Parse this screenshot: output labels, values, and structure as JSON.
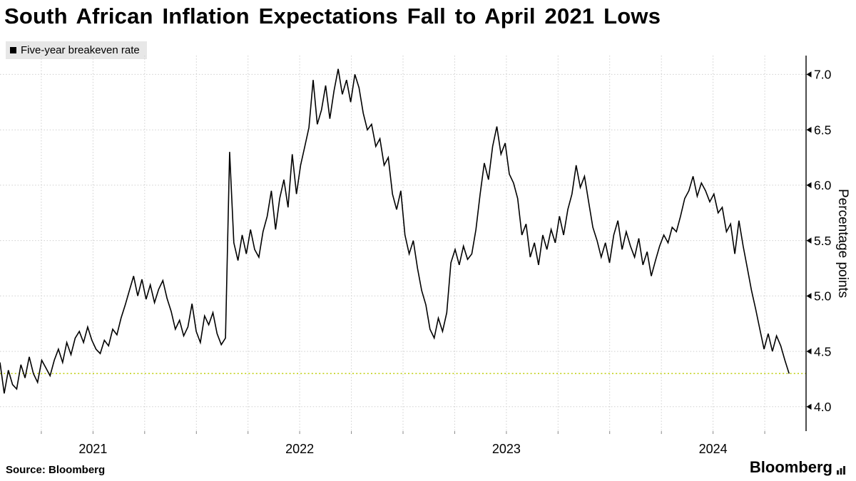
{
  "header": {
    "title": "South African Inflation Expectations Fall to April 2021 Lows"
  },
  "legend": {
    "label": "Five-year breakeven rate",
    "marker_color": "#000000",
    "background": "#e7e7e7"
  },
  "footer": {
    "source": "Source: Bloomberg",
    "logo_text": "Bloomberg",
    "logo_icon": "bar-chart-icon"
  },
  "chart_data": {
    "type": "line",
    "title": "South African Inflation Expectations Fall to April 2021 Lows",
    "y_axis_label": "Percentage points",
    "x_ticks": [
      {
        "label": "2021",
        "x": 2021.5
      },
      {
        "label": "2022",
        "x": 2022.5
      },
      {
        "label": "2023",
        "x": 2023.5
      },
      {
        "label": "2024",
        "x": 2024.5
      }
    ],
    "y_ticks": [
      4.0,
      4.5,
      5.0,
      5.5,
      6.0,
      6.5,
      7.0
    ],
    "x_range": [
      2021.05,
      2024.95
    ],
    "y_range": [
      3.78,
      7.17
    ],
    "grid": {
      "show": true,
      "color": "#cfcfcf",
      "style": "dotted",
      "x_interval_years": 0.25
    },
    "reference_line": {
      "value": 4.3,
      "color": "#c3d21f",
      "style": "dotted"
    },
    "series": [
      {
        "name": "Five-year breakeven rate",
        "color": "#000000",
        "unit": "percentage points",
        "x_start": 2021.05,
        "x_step_years": 0.0202,
        "values": [
          4.4,
          4.12,
          4.33,
          4.2,
          4.16,
          4.38,
          4.26,
          4.45,
          4.3,
          4.22,
          4.42,
          4.35,
          4.28,
          4.42,
          4.52,
          4.4,
          4.58,
          4.47,
          4.62,
          4.68,
          4.58,
          4.72,
          4.6,
          4.52,
          4.48,
          4.6,
          4.55,
          4.7,
          4.65,
          4.8,
          4.92,
          5.05,
          5.18,
          5.0,
          5.15,
          4.97,
          5.1,
          4.94,
          5.06,
          5.14,
          4.98,
          4.86,
          4.7,
          4.78,
          4.64,
          4.72,
          4.93,
          4.68,
          4.58,
          4.82,
          4.74,
          4.85,
          4.66,
          4.56,
          4.62,
          6.3,
          5.48,
          5.32,
          5.55,
          5.38,
          5.6,
          5.42,
          5.35,
          5.58,
          5.72,
          5.95,
          5.6,
          5.88,
          6.05,
          5.8,
          6.28,
          5.92,
          6.18,
          6.35,
          6.52,
          6.95,
          6.55,
          6.68,
          6.9,
          6.6,
          6.85,
          7.05,
          6.82,
          6.95,
          6.75,
          7.0,
          6.88,
          6.65,
          6.5,
          6.55,
          6.35,
          6.42,
          6.18,
          6.25,
          5.92,
          5.78,
          5.95,
          5.55,
          5.38,
          5.5,
          5.25,
          5.05,
          4.92,
          4.7,
          4.62,
          4.8,
          4.68,
          4.85,
          5.3,
          5.42,
          5.28,
          5.45,
          5.33,
          5.38,
          5.6,
          5.92,
          6.2,
          6.05,
          6.35,
          6.53,
          6.28,
          6.38,
          6.1,
          6.02,
          5.88,
          5.55,
          5.65,
          5.35,
          5.48,
          5.28,
          5.55,
          5.42,
          5.6,
          5.48,
          5.72,
          5.55,
          5.78,
          5.92,
          6.18,
          5.98,
          6.08,
          5.85,
          5.62,
          5.5,
          5.35,
          5.48,
          5.3,
          5.55,
          5.68,
          5.42,
          5.58,
          5.45,
          5.35,
          5.52,
          5.28,
          5.4,
          5.18,
          5.32,
          5.45,
          5.55,
          5.48,
          5.62,
          5.58,
          5.72,
          5.88,
          5.95,
          6.08,
          5.9,
          6.02,
          5.95,
          5.85,
          5.92,
          5.75,
          5.8,
          5.58,
          5.65,
          5.38,
          5.68,
          5.45,
          5.25,
          5.05,
          4.88,
          4.7,
          4.52,
          4.66,
          4.5,
          4.64,
          4.55,
          4.42,
          4.3
        ]
      }
    ]
  }
}
